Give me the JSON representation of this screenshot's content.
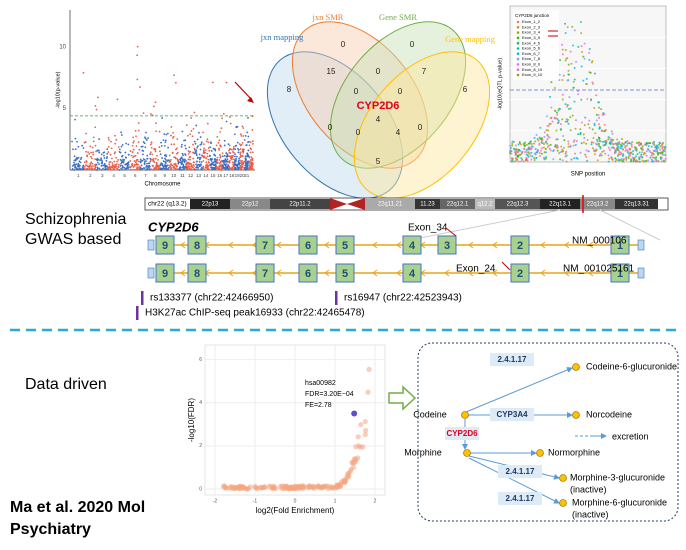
{
  "manhattan": {
    "y_label": "-log10(p-value)",
    "x_label": "Chromosome",
    "yticks": [
      5,
      10
    ],
    "xticks": [
      1,
      2,
      3,
      4,
      5,
      6,
      7,
      8,
      9,
      10,
      11,
      12,
      13,
      14,
      15,
      16,
      17,
      18,
      19,
      20,
      21
    ]
  },
  "venn": {
    "sets": [
      "jxn mapping",
      "jxn SMR",
      "Gene SMR",
      "Gene mapping"
    ],
    "counts": [
      0,
      0,
      15,
      0,
      7,
      8,
      6,
      0,
      0,
      4,
      0,
      0,
      4,
      0,
      5
    ],
    "center": "CYP2D6"
  },
  "eqtl": {
    "y_label": "-log10(eQTL p-value)",
    "x_label": "SNP position",
    "legend_title": "CYP2D6 junction",
    "legend": [
      "Exon_1_2",
      "Exon_2_3",
      "Exon_3_4",
      "Exon_3_5",
      "Exon_4_5",
      "Exon_5_6",
      "Exon_6_7",
      "Exon_7_8",
      "Exon_8_9",
      "Exon_8_10",
      "Exon_9_10"
    ]
  },
  "gwas": {
    "title": [
      "Schizophrenia",
      "GWAS based"
    ]
  },
  "ideogram": {
    "label": "chr22 (q13.2)",
    "bands": [
      "22p13",
      "22p12",
      "22p11.2",
      "22q11.21",
      "11.23",
      "22q12.1",
      "q12.2",
      "22q12.3",
      "22q13.1",
      "22q13.2",
      "22q13.31"
    ]
  },
  "gene": {
    "name": "CYP2D6",
    "transcripts": [
      {
        "name": "NM_000106",
        "exons": [
          9,
          8,
          7,
          6,
          5,
          4,
          3,
          2,
          1
        ]
      },
      {
        "name": "NM_001025161",
        "exons": [
          9,
          8,
          7,
          6,
          5,
          4,
          2,
          1
        ]
      }
    ],
    "annotations": [
      "Exon_34",
      "Exon_24"
    ]
  },
  "snps": [
    "rs133377 (chr22:42466950)",
    "rs16947 (chr22:42523943)",
    "H3K27ac ChIP-seq peak16933 (chr22:42465478)"
  ],
  "data_driven": {
    "title": "Data driven"
  },
  "enrichment": {
    "y_label": "-log10(FDR)",
    "x_label": "log2(Fold Enrichment)",
    "xticks": [
      -2,
      -1,
      0,
      1,
      2
    ],
    "yticks": [
      0,
      2,
      4,
      6
    ],
    "annotation": [
      "hsa00982",
      "FDR=3.20E−04",
      "FE=2.78"
    ]
  },
  "pathway": {
    "nodes": [
      "Codeine-6-glucuronide",
      "Codeine",
      "Norcodeine",
      "Morphine",
      "Normorphine",
      "Morphine-3-glucuronide",
      "(inactive)",
      "Morphine-6-glucuronide",
      "(inactive)"
    ],
    "enzymes": [
      "2.4.1.17",
      "CYP3A4",
      "CYP2D6",
      "2.4.1.17",
      "2.4.1.17"
    ],
    "legend": "excretion"
  },
  "citation": [
    "Ma et al. 2020 Mol",
    "Psychiatry"
  ]
}
